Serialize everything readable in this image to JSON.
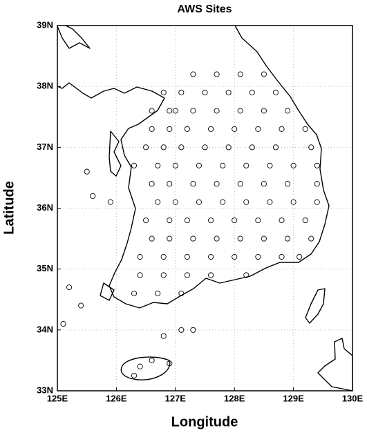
{
  "chart_data": {
    "type": "scatter",
    "title": "AWS Sites",
    "x_label": "Longitude",
    "y_label": "Latitude",
    "color": "#000000",
    "grid": true,
    "xlim": [
      125,
      130
    ],
    "ylim": [
      33,
      39
    ],
    "xticks": [
      {
        "value": 125,
        "label": "125E"
      },
      {
        "value": 126,
        "label": "126E"
      },
      {
        "value": 127,
        "label": "127E"
      },
      {
        "value": 128,
        "label": "128E"
      },
      {
        "value": 129,
        "label": "129E"
      },
      {
        "value": 130,
        "label": "130E"
      }
    ],
    "yticks": [
      {
        "value": 33,
        "label": "33N"
      },
      {
        "value": 34,
        "label": "34N"
      },
      {
        "value": 35,
        "label": "35N"
      },
      {
        "value": 36,
        "label": "36N"
      },
      {
        "value": 37,
        "label": "37N"
      },
      {
        "value": 38,
        "label": "38N"
      },
      {
        "value": 39,
        "label": "39N"
      }
    ],
    "x": [
      127.3,
      127.7,
      128.1,
      128.5,
      126.8,
      127.1,
      127.5,
      127.9,
      128.3,
      128.7,
      126.6,
      126.9,
      127.0,
      127.3,
      127.7,
      128.1,
      128.5,
      128.9,
      126.6,
      126.9,
      127.2,
      127.6,
      128.0,
      128.4,
      128.8,
      129.2,
      126.5,
      126.8,
      127.1,
      127.5,
      127.9,
      128.3,
      128.7,
      129.3,
      126.3,
      126.7,
      127.0,
      127.4,
      127.8,
      128.2,
      128.6,
      129.0,
      129.4,
      126.6,
      126.9,
      127.3,
      127.7,
      128.1,
      128.5,
      128.9,
      129.4,
      126.7,
      127.0,
      127.4,
      127.8,
      128.2,
      128.6,
      129.0,
      129.4,
      126.5,
      126.9,
      127.2,
      127.6,
      128.0,
      128.4,
      128.8,
      129.2,
      126.6,
      126.9,
      127.3,
      127.7,
      128.1,
      128.5,
      128.9,
      129.3,
      126.4,
      126.8,
      127.2,
      127.6,
      128.0,
      128.4,
      128.8,
      129.1,
      126.4,
      126.8,
      127.2,
      127.6,
      128.2,
      126.3,
      126.7,
      127.1,
      125.1,
      125.4,
      125.2,
      125.5,
      125.6,
      125.9,
      126.4,
      126.6,
      126.9,
      126.3,
      127.1,
      126.8,
      127.3
    ],
    "values": [
      38.2,
      38.2,
      38.2,
      38.2,
      37.9,
      37.9,
      37.9,
      37.9,
      37.9,
      37.9,
      37.6,
      37.6,
      37.6,
      37.6,
      37.6,
      37.6,
      37.6,
      37.6,
      37.3,
      37.3,
      37.3,
      37.3,
      37.3,
      37.3,
      37.3,
      37.3,
      37.0,
      37.0,
      37.0,
      37.0,
      37.0,
      37.0,
      37.0,
      37.0,
      36.7,
      36.7,
      36.7,
      36.7,
      36.7,
      36.7,
      36.7,
      36.7,
      36.7,
      36.4,
      36.4,
      36.4,
      36.4,
      36.4,
      36.4,
      36.4,
      36.4,
      36.1,
      36.1,
      36.1,
      36.1,
      36.1,
      36.1,
      36.1,
      36.1,
      35.8,
      35.8,
      35.8,
      35.8,
      35.8,
      35.8,
      35.8,
      35.8,
      35.5,
      35.5,
      35.5,
      35.5,
      35.5,
      35.5,
      35.5,
      35.5,
      35.2,
      35.2,
      35.2,
      35.2,
      35.2,
      35.2,
      35.2,
      35.2,
      34.9,
      34.9,
      34.9,
      34.9,
      34.9,
      34.6,
      34.6,
      34.6,
      34.1,
      34.4,
      34.7,
      36.6,
      36.2,
      36.1,
      33.4,
      33.5,
      33.45,
      33.25,
      34.0,
      33.9,
      34.0
    ]
  }
}
